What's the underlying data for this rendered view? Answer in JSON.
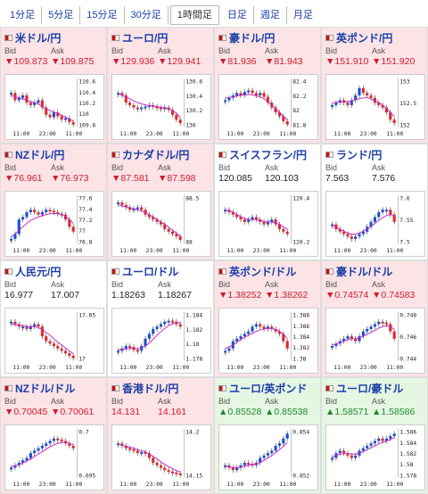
{
  "tabs": [
    "1分足",
    "5分足",
    "15分足",
    "30分足",
    "1時間足",
    "日足",
    "週足",
    "月足"
  ],
  "active_tab": "1時間足",
  "labels": {
    "bid": "Bid",
    "ask": "Ask"
  },
  "colors": {
    "down_bg": "#fbe3e6",
    "up_bg": "#e5f6e3",
    "down": "#d21a2a",
    "up": "#1d8a2a",
    "link": "#1a3fa6"
  },
  "pairs": [
    {
      "name": "米ドル/円",
      "dir": "down",
      "bid": "▼109.873",
      "ask": "▼109.875",
      "y_ticks": [
        "110.6",
        "110.4",
        "110.2",
        "110",
        "109.8"
      ],
      "x_ticks": [
        "11:00",
        "23:00",
        "11:00"
      ],
      "trend": [
        0.3,
        0.45,
        0.4,
        0.35,
        0.5,
        0.55,
        0.5,
        0.45,
        0.6,
        0.75,
        0.8,
        0.7,
        0.78,
        0.85,
        0.82,
        0.9,
        0.95
      ],
      "ma": [
        0.35,
        0.38,
        0.4,
        0.42,
        0.45,
        0.48,
        0.5,
        0.52,
        0.58,
        0.62,
        0.66,
        0.7,
        0.72,
        0.76,
        0.8,
        0.84,
        0.88
      ],
      "icon": "us-flag-icon"
    },
    {
      "name": "ユーロ/円",
      "dir": "down",
      "bid": "▼129.936",
      "ask": "▼129.941",
      "y_ticks": [
        "130.6",
        "130.4",
        "130.2",
        "130"
      ],
      "x_ticks": [
        "11:00",
        "23:00",
        "11:00"
      ],
      "trend": [
        0.3,
        0.35,
        0.5,
        0.55,
        0.6,
        0.62,
        0.6,
        0.58,
        0.55,
        0.58,
        0.6,
        0.62,
        0.6,
        0.65,
        0.75,
        0.85,
        0.92
      ],
      "ma": [
        0.3,
        0.35,
        0.38,
        0.42,
        0.46,
        0.5,
        0.52,
        0.55,
        0.56,
        0.57,
        0.58,
        0.6,
        0.6,
        0.62,
        0.66,
        0.72,
        0.8
      ],
      "icon": "eu-flag-icon"
    },
    {
      "name": "豪ドル/円",
      "dir": "down",
      "bid": "▼81.936",
      "ask": "▼81.943",
      "y_ticks": [
        "82.4",
        "82.2",
        "82",
        "81.8"
      ],
      "x_ticks": [
        "11:00",
        "23:00",
        "11:00"
      ],
      "trend": [
        0.45,
        0.4,
        0.35,
        0.3,
        0.35,
        0.28,
        0.25,
        0.3,
        0.35,
        0.3,
        0.38,
        0.5,
        0.6,
        0.7,
        0.78,
        0.88,
        0.95
      ],
      "ma": [
        0.4,
        0.4,
        0.38,
        0.36,
        0.35,
        0.34,
        0.33,
        0.34,
        0.36,
        0.38,
        0.42,
        0.48,
        0.55,
        0.62,
        0.7,
        0.78,
        0.85
      ],
      "icon": "au-flag-icon"
    },
    {
      "name": "英ポンド/円",
      "dir": "down",
      "bid": "▼151.910",
      "ask": "▼151.920",
      "y_ticks": [
        "153",
        "152.5",
        "152"
      ],
      "x_ticks": [
        "11:00",
        "23:00",
        "11:00"
      ],
      "trend": [
        0.55,
        0.5,
        0.45,
        0.5,
        0.55,
        0.45,
        0.35,
        0.2,
        0.3,
        0.35,
        0.4,
        0.5,
        0.55,
        0.6,
        0.7,
        0.85,
        0.92
      ],
      "ma": [
        0.5,
        0.5,
        0.48,
        0.48,
        0.48,
        0.46,
        0.44,
        0.42,
        0.4,
        0.4,
        0.42,
        0.46,
        0.5,
        0.55,
        0.62,
        0.7,
        0.78
      ],
      "icon": "gb-flag-icon"
    },
    {
      "name": "NZドル/円",
      "dir": "down",
      "bid": "▼76.961",
      "ask": "▼76.973",
      "y_ticks": [
        "77.6",
        "77.4",
        "77.2",
        "77",
        "76.8"
      ],
      "x_ticks": [
        "11:00",
        "23:00",
        "11:00"
      ],
      "trend": [
        0.9,
        0.8,
        0.5,
        0.45,
        0.35,
        0.3,
        0.35,
        0.4,
        0.35,
        0.3,
        0.32,
        0.35,
        0.38,
        0.4,
        0.5,
        0.65,
        0.75
      ],
      "ma": [
        0.85,
        0.8,
        0.72,
        0.65,
        0.58,
        0.52,
        0.48,
        0.45,
        0.42,
        0.4,
        0.38,
        0.38,
        0.38,
        0.4,
        0.44,
        0.5,
        0.58
      ],
      "icon": "nz-flag-icon"
    },
    {
      "name": "カナダドル/円",
      "dir": "down",
      "bid": "▼87.581",
      "ask": "▼87.598",
      "y_ticks": [
        "88.5",
        "88"
      ],
      "x_ticks": [
        "11:00",
        "23:00",
        "11:00"
      ],
      "trend": [
        0.15,
        0.2,
        0.25,
        0.3,
        0.28,
        0.25,
        0.3,
        0.4,
        0.45,
        0.5,
        0.55,
        0.6,
        0.7,
        0.75,
        0.8,
        0.85,
        0.92
      ],
      "ma": [
        0.2,
        0.22,
        0.24,
        0.26,
        0.28,
        0.3,
        0.32,
        0.36,
        0.4,
        0.45,
        0.5,
        0.55,
        0.6,
        0.66,
        0.72,
        0.78,
        0.85
      ],
      "icon": "ca-flag-icon"
    },
    {
      "name": "スイスフラン/円",
      "dir": "flat",
      "bid": "120.085",
      "ask": "120.103",
      "y_ticks": [
        "120.4",
        "120.2"
      ],
      "x_ticks": [
        "11:00",
        "23:00",
        "11:00"
      ],
      "trend": [
        0.3,
        0.35,
        0.4,
        0.45,
        0.5,
        0.55,
        0.5,
        0.45,
        0.5,
        0.55,
        0.6,
        0.55,
        0.5,
        0.6,
        0.7,
        0.75,
        0.8
      ],
      "ma": [
        0.3,
        0.32,
        0.35,
        0.4,
        0.44,
        0.48,
        0.5,
        0.5,
        0.5,
        0.52,
        0.54,
        0.55,
        0.55,
        0.57,
        0.6,
        0.65,
        0.7
      ],
      "icon": "ch-flag-icon"
    },
    {
      "name": "ランド/円",
      "dir": "flat",
      "bid": "7.563",
      "ask": "7.576",
      "y_ticks": [
        "7.6",
        "7.55",
        "7.5"
      ],
      "x_ticks": [
        "11:00",
        "23:00",
        "11:00"
      ],
      "trend": [
        0.6,
        0.7,
        0.75,
        0.8,
        0.85,
        0.9,
        0.85,
        0.8,
        0.75,
        0.65,
        0.55,
        0.45,
        0.35,
        0.3,
        0.3,
        0.4,
        0.55
      ],
      "ma": [
        0.62,
        0.66,
        0.7,
        0.74,
        0.78,
        0.8,
        0.8,
        0.78,
        0.74,
        0.7,
        0.64,
        0.58,
        0.52,
        0.46,
        0.42,
        0.4,
        0.42
      ],
      "icon": "za-flag-icon"
    },
    {
      "name": "人民元/円",
      "dir": "flat",
      "bid": "16.977",
      "ask": "17.007",
      "y_ticks": [
        "17.05",
        "17"
      ],
      "x_ticks": [
        "11:00",
        "23:00",
        "11:00"
      ],
      "trend": [
        0.2,
        0.25,
        0.3,
        0.3,
        0.35,
        0.3,
        0.25,
        0.3,
        0.5,
        0.6,
        0.65,
        0.7,
        0.75,
        0.8,
        0.85,
        0.9,
        0.95
      ],
      "ma": [
        0.25,
        0.26,
        0.27,
        0.28,
        0.3,
        0.3,
        0.3,
        0.32,
        0.36,
        0.42,
        0.48,
        0.55,
        0.62,
        0.68,
        0.74,
        0.8,
        0.86
      ],
      "icon": "cn-flag-icon"
    },
    {
      "name": "ユーロ/ドル",
      "dir": "flat",
      "bid": "1.18263",
      "ask": "1.18267",
      "y_ticks": [
        "1.184",
        "1.182",
        "1.18",
        "1.178"
      ],
      "x_ticks": [
        "11:00",
        "23:00",
        "11:00"
      ],
      "trend": [
        0.8,
        0.75,
        0.7,
        0.72,
        0.78,
        0.8,
        0.7,
        0.55,
        0.45,
        0.35,
        0.3,
        0.25,
        0.2,
        0.18,
        0.2,
        0.25,
        0.3
      ],
      "ma": [
        0.78,
        0.77,
        0.76,
        0.75,
        0.75,
        0.76,
        0.74,
        0.7,
        0.64,
        0.56,
        0.48,
        0.4,
        0.34,
        0.28,
        0.24,
        0.22,
        0.22
      ],
      "icon": "eu-flag-icon"
    },
    {
      "name": "英ポンド/ドル",
      "dir": "down",
      "bid": "▼1.38252",
      "ask": "▼1.38262",
      "y_ticks": [
        "1.388",
        "1.386",
        "1.384",
        "1.382",
        "1.38"
      ],
      "x_ticks": [
        "11:00",
        "23:00",
        "11:00"
      ],
      "trend": [
        0.8,
        0.75,
        0.6,
        0.55,
        0.5,
        0.45,
        0.4,
        0.3,
        0.25,
        0.3,
        0.35,
        0.3,
        0.35,
        0.4,
        0.45,
        0.6,
        0.75
      ],
      "ma": [
        0.75,
        0.72,
        0.68,
        0.62,
        0.57,
        0.52,
        0.48,
        0.44,
        0.4,
        0.37,
        0.35,
        0.34,
        0.34,
        0.36,
        0.4,
        0.46,
        0.54
      ],
      "icon": "gb-flag-icon"
    },
    {
      "name": "豪ドル/ドル",
      "dir": "down",
      "bid": "▼0.74574",
      "ask": "▼0.74583",
      "y_ticks": [
        "0.748",
        "0.746",
        "0.744"
      ],
      "x_ticks": [
        "11:00",
        "23:00",
        "11:00"
      ],
      "trend": [
        0.7,
        0.65,
        0.6,
        0.55,
        0.5,
        0.55,
        0.6,
        0.5,
        0.4,
        0.35,
        0.3,
        0.25,
        0.2,
        0.22,
        0.25,
        0.4,
        0.55
      ],
      "ma": [
        0.68,
        0.66,
        0.63,
        0.6,
        0.57,
        0.55,
        0.55,
        0.53,
        0.5,
        0.46,
        0.42,
        0.38,
        0.33,
        0.3,
        0.28,
        0.3,
        0.36
      ],
      "icon": "au-flag-icon"
    },
    {
      "name": "NZドル/ドル",
      "dir": "down",
      "bid": "▼0.70045",
      "ask": "▼0.70061",
      "y_ticks": [
        "0.7",
        "0.695"
      ],
      "x_ticks": [
        "11:00",
        "23:00",
        "11:00"
      ],
      "trend": [
        0.8,
        0.75,
        0.7,
        0.65,
        0.6,
        0.5,
        0.45,
        0.4,
        0.35,
        0.3,
        0.25,
        0.2,
        0.22,
        0.25,
        0.3,
        0.35,
        0.4
      ],
      "ma": [
        0.78,
        0.76,
        0.74,
        0.7,
        0.66,
        0.62,
        0.57,
        0.52,
        0.47,
        0.42,
        0.37,
        0.33,
        0.3,
        0.28,
        0.28,
        0.3,
        0.33
      ],
      "icon": "nz-flag-icon"
    },
    {
      "name": "香港ドル/円",
      "dir": "down",
      "bid": "14.131",
      "ask": "14.161",
      "y_ticks": [
        "14.2",
        "14.15"
      ],
      "x_ticks": [
        "11:00",
        "23:00",
        "11:00"
      ],
      "trend": [
        0.3,
        0.35,
        0.4,
        0.42,
        0.45,
        0.5,
        0.48,
        0.5,
        0.6,
        0.7,
        0.75,
        0.8,
        0.85,
        0.88,
        0.9,
        0.92,
        0.95
      ],
      "ma": [
        0.32,
        0.34,
        0.36,
        0.38,
        0.4,
        0.43,
        0.45,
        0.47,
        0.52,
        0.57,
        0.62,
        0.68,
        0.73,
        0.78,
        0.82,
        0.86,
        0.89
      ],
      "icon": "hk-flag-icon"
    },
    {
      "name": "ユーロ/英ポンド",
      "dir": "up",
      "bid": "▲0.85528",
      "ask": "▲0.85538",
      "y_ticks": [
        "0.854",
        "0.852"
      ],
      "x_ticks": [
        "11:00",
        "23:00",
        "11:00"
      ],
      "trend": [
        0.75,
        0.8,
        0.85,
        0.8,
        0.75,
        0.7,
        0.72,
        0.75,
        0.7,
        0.6,
        0.55,
        0.5,
        0.45,
        0.35,
        0.3,
        0.2,
        0.1
      ],
      "ma": [
        0.78,
        0.79,
        0.8,
        0.8,
        0.79,
        0.77,
        0.75,
        0.74,
        0.72,
        0.69,
        0.65,
        0.6,
        0.55,
        0.49,
        0.43,
        0.36,
        0.28
      ],
      "icon": "eu-flag-icon"
    },
    {
      "name": "ユーロ/豪ドル",
      "dir": "up",
      "bid": "▲1.58571",
      "ask": "▲1.58586",
      "y_ticks": [
        "1.586",
        "1.584",
        "1.582",
        "1.58",
        "1.578"
      ],
      "x_ticks": [
        "11:00",
        "23:00",
        "11:00"
      ],
      "trend": [
        0.6,
        0.5,
        0.45,
        0.5,
        0.55,
        0.6,
        0.55,
        0.45,
        0.4,
        0.35,
        0.3,
        0.25,
        0.2,
        0.25,
        0.2,
        0.15,
        0.1
      ],
      "ma": [
        0.58,
        0.55,
        0.52,
        0.51,
        0.51,
        0.52,
        0.52,
        0.5,
        0.47,
        0.43,
        0.39,
        0.35,
        0.31,
        0.28,
        0.25,
        0.22,
        0.18
      ],
      "icon": "eu-flag-icon"
    }
  ]
}
